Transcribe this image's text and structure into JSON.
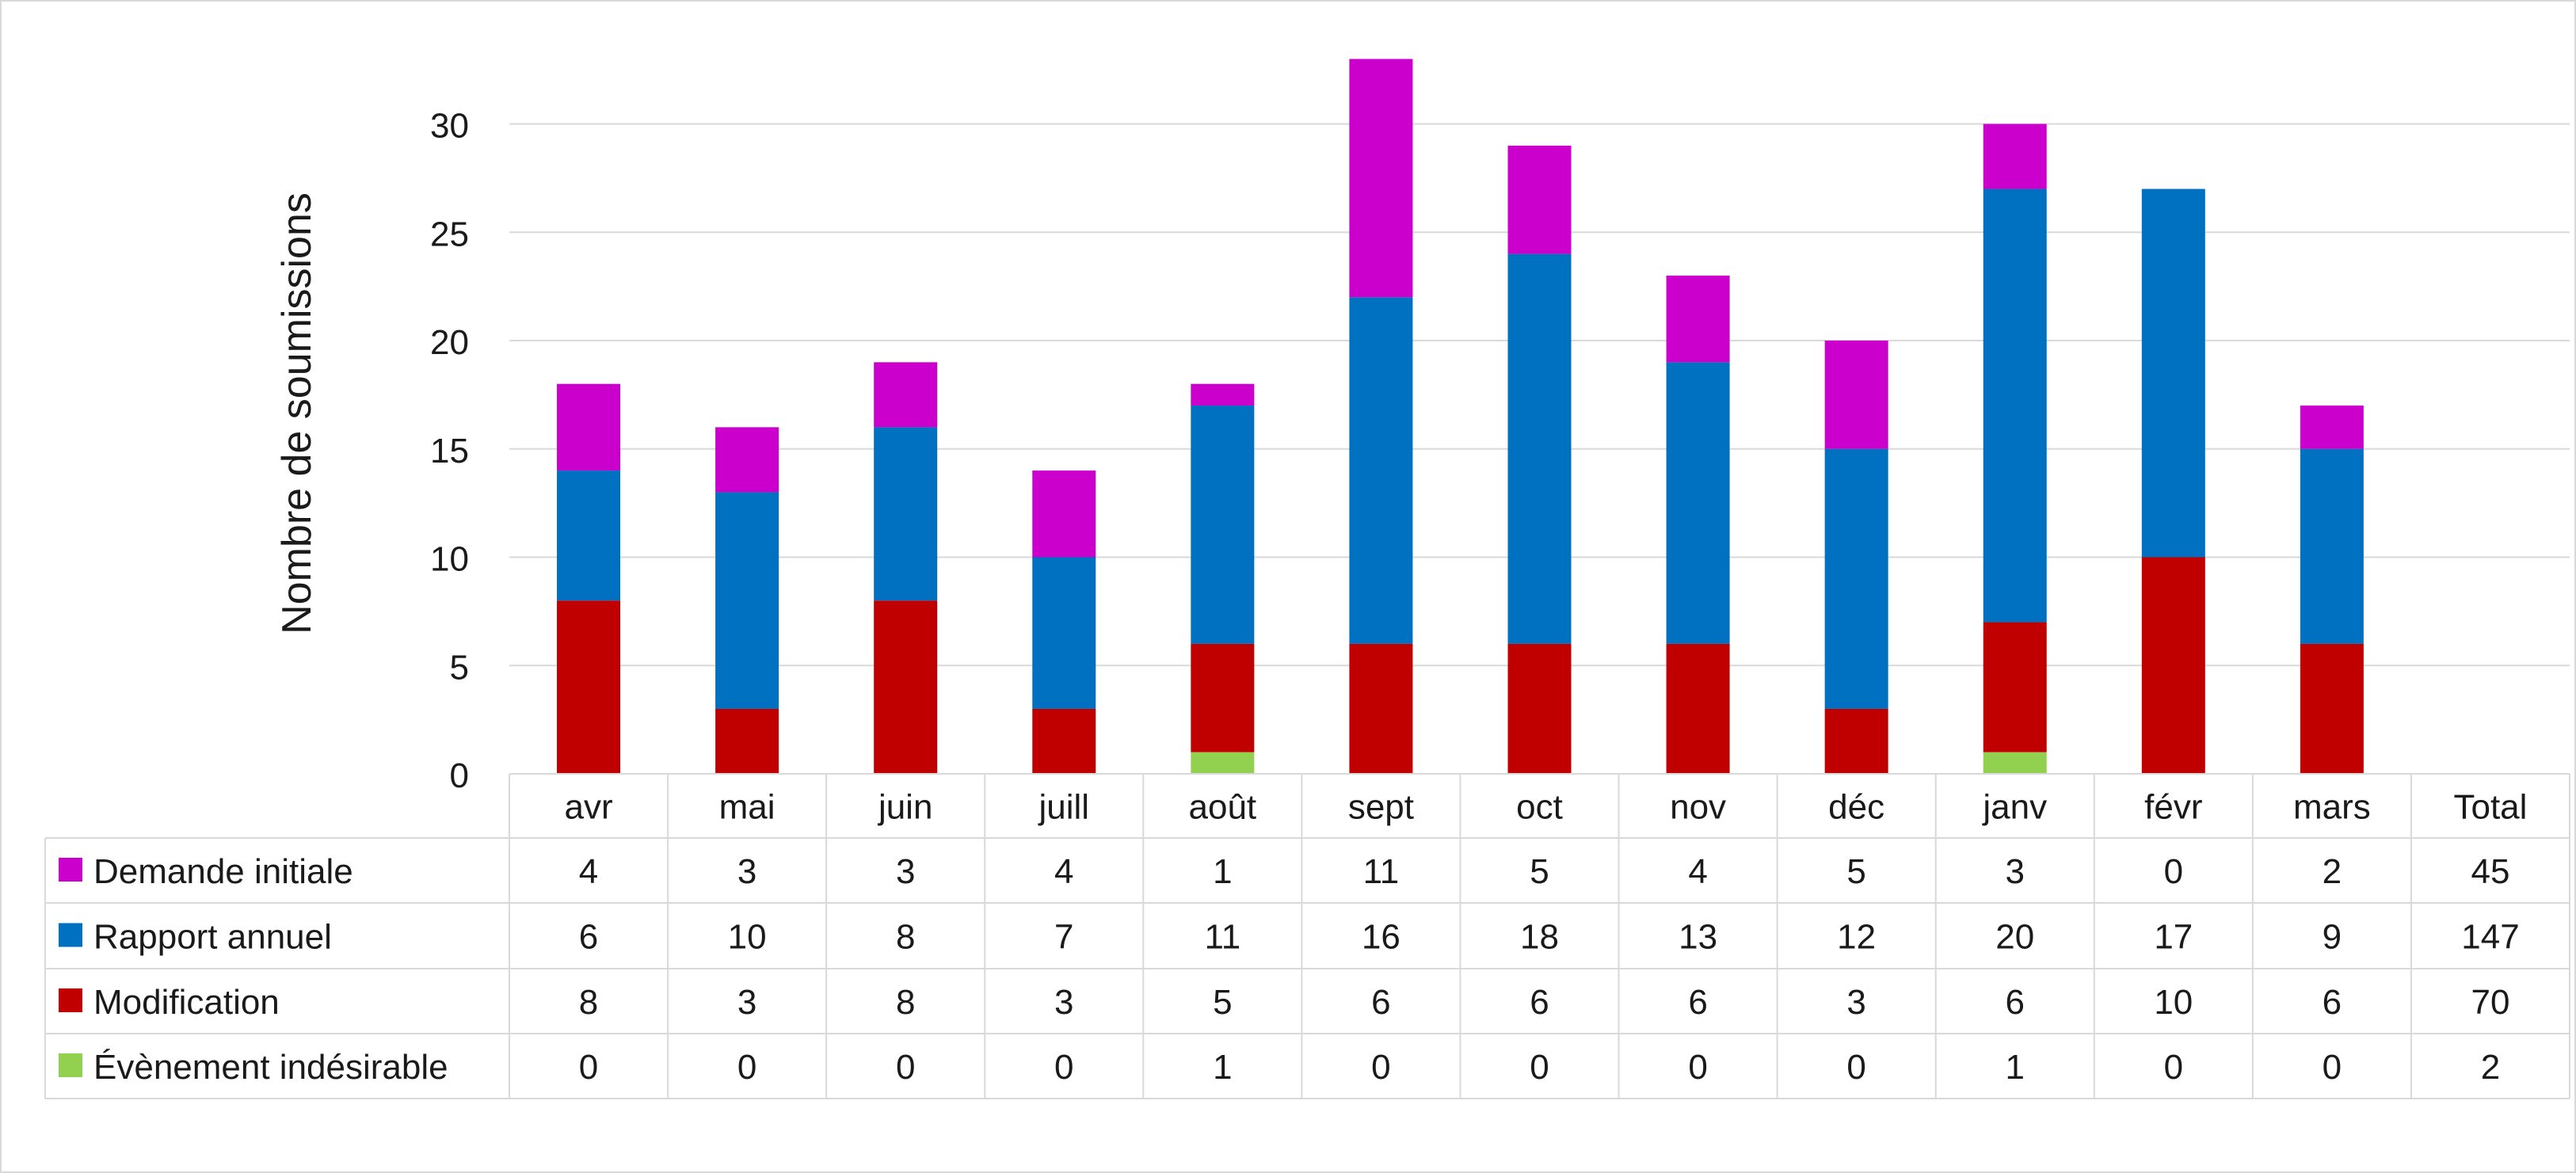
{
  "chart_data": {
    "type": "bar",
    "stacked": true,
    "ylabel": "Nombre de soumissions",
    "ylim": [
      0,
      33
    ],
    "yticks": [
      0,
      5,
      10,
      15,
      20,
      25,
      30
    ],
    "grid": true,
    "legend": "data-table-left",
    "categories": [
      "avr",
      "mai",
      "juin",
      "juill",
      "août",
      "sept",
      "oct",
      "nov",
      "déc",
      "janv",
      "févr",
      "mars"
    ],
    "total_label": "Total",
    "series": [
      {
        "name": "Demande initiale",
        "color": "#CC00CC",
        "values": [
          4,
          3,
          3,
          4,
          1,
          11,
          5,
          4,
          5,
          3,
          0,
          2
        ],
        "total": 45
      },
      {
        "name": "Rapport annuel",
        "color": "#0070C0",
        "values": [
          6,
          10,
          8,
          7,
          11,
          16,
          18,
          13,
          12,
          20,
          17,
          9
        ],
        "total": 147
      },
      {
        "name": "Modification",
        "color": "#C00000",
        "values": [
          8,
          3,
          8,
          3,
          5,
          6,
          6,
          6,
          3,
          6,
          10,
          6
        ],
        "total": 70
      },
      {
        "name": "Évènement indésirable",
        "color": "#92D050",
        "values": [
          0,
          0,
          0,
          0,
          1,
          0,
          0,
          0,
          0,
          1,
          0,
          0
        ],
        "total": 2
      }
    ]
  }
}
